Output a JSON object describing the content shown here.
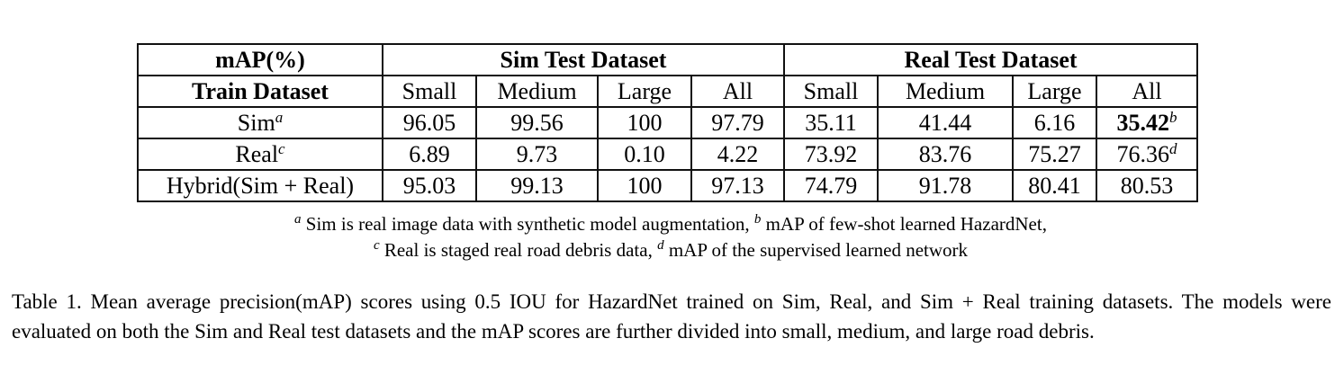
{
  "table": {
    "header_row1": {
      "metric_label": "mAP(%)",
      "sim_group": "Sim Test Dataset",
      "real_group": "Real Test Dataset"
    },
    "header_row2": {
      "train_label": "Train Dataset",
      "sim_cols": [
        "Small",
        "Medium",
        "Large",
        "All"
      ],
      "real_cols": [
        "Small",
        "Medium",
        "Large",
        "All"
      ]
    },
    "rows": [
      {
        "name": "Sim",
        "name_sup": "a",
        "sim": [
          "96.05",
          "99.56",
          "100",
          "97.79"
        ],
        "real": [
          "35.11",
          "41.44",
          "6.16",
          "35.42"
        ],
        "real_all_sup": "b",
        "real_all_bold": true
      },
      {
        "name": "Real",
        "name_sup": "c",
        "sim": [
          "6.89",
          "9.73",
          "0.10",
          "4.22"
        ],
        "real": [
          "73.92",
          "83.76",
          "75.27",
          "76.36"
        ],
        "real_all_sup": "d",
        "real_all_bold": false
      },
      {
        "name": "Hybrid(Sim + Real)",
        "name_sup": "",
        "sim": [
          "95.03",
          "99.13",
          "100",
          "97.13"
        ],
        "real": [
          "74.79",
          "91.78",
          "80.41",
          "80.53"
        ],
        "real_all_sup": "",
        "real_all_bold": false
      }
    ]
  },
  "footnotes": {
    "line1": {
      "mark_a": "a",
      "text_a": " Sim is real image data with synthetic model augmentation, ",
      "mark_b": "b",
      "text_b": " mAP of few-shot learned HazardNet,"
    },
    "line2": {
      "mark_c": "c",
      "text_c": " Real is staged real road debris data, ",
      "mark_d": "d",
      "text_d": " mAP of the supervised learned network"
    }
  },
  "caption": "Table 1. Mean average precision(mAP) scores using 0.5 IOU for HazardNet trained on Sim, Real, and Sim + Real training datasets. The models were evaluated on both the Sim and Real test datasets and the mAP scores are further divided into small, medium, and large road debris."
}
